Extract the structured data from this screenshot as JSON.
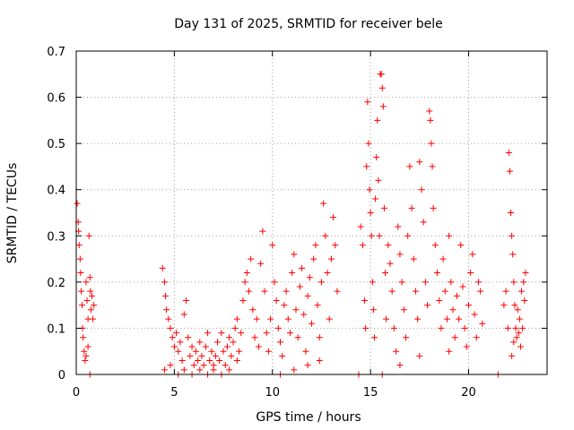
{
  "chart_data": {
    "type": "scatter",
    "title": "Day 131 of 2025, SRMTID for receiver bele",
    "xlabel": "GPS time / hours",
    "ylabel": "SRMTID / TECUs",
    "xlim": [
      0,
      24
    ],
    "ylim": [
      0,
      0.7
    ],
    "x_ticks": [
      "0",
      "5",
      "10",
      "15",
      "20"
    ],
    "y_ticks": [
      "0",
      "0.1",
      "0.2",
      "0.3",
      "0.4",
      "0.5",
      "0.6",
      "0.7"
    ],
    "grid": true,
    "marker": "+",
    "series": [
      {
        "name": "SRMTID",
        "color": "#ff0000",
        "points": [
          [
            0.05,
            0.37
          ],
          [
            0.1,
            0.33
          ],
          [
            0.12,
            0.31
          ],
          [
            0.15,
            0.28
          ],
          [
            0.2,
            0.25
          ],
          [
            0.22,
            0.22
          ],
          [
            0.25,
            0.18
          ],
          [
            0.3,
            0.15
          ],
          [
            0.32,
            0.1
          ],
          [
            0.35,
            0.08
          ],
          [
            0.4,
            0.05
          ],
          [
            0.45,
            0.03
          ],
          [
            0.5,
            0.2
          ],
          [
            0.55,
            0.16
          ],
          [
            0.6,
            0.12
          ],
          [
            0.65,
            0.3
          ],
          [
            0.7,
            0.21
          ],
          [
            0.72,
            0.18
          ],
          [
            0.75,
            0.14
          ],
          [
            0.8,
            0.17
          ],
          [
            0.85,
            0.12
          ],
          [
            0.9,
            0.15
          ],
          [
            0.7,
            0.0
          ],
          [
            0.6,
            0.06
          ],
          [
            0.5,
            0.04
          ],
          [
            4.4,
            0.23
          ],
          [
            4.5,
            0.2
          ],
          [
            4.55,
            0.17
          ],
          [
            4.6,
            0.14
          ],
          [
            4.7,
            0.12
          ],
          [
            4.8,
            0.1
          ],
          [
            4.9,
            0.08
          ],
          [
            5.0,
            0.06
          ],
          [
            5.1,
            0.09
          ],
          [
            5.2,
            0.05
          ],
          [
            5.3,
            0.07
          ],
          [
            5.4,
            0.03
          ],
          [
            5.5,
            0.13
          ],
          [
            5.6,
            0.16
          ],
          [
            5.7,
            0.08
          ],
          [
            5.8,
            0.04
          ],
          [
            5.9,
            0.06
          ],
          [
            6.0,
            0.02
          ],
          [
            6.1,
            0.05
          ],
          [
            6.2,
            0.03
          ],
          [
            6.3,
            0.07
          ],
          [
            6.4,
            0.04
          ],
          [
            6.5,
            0.02
          ],
          [
            6.6,
            0.06
          ],
          [
            6.7,
            0.09
          ],
          [
            6.8,
            0.03
          ],
          [
            6.9,
            0.05
          ],
          [
            7.0,
            0.01
          ],
          [
            7.1,
            0.04
          ],
          [
            7.2,
            0.07
          ],
          [
            7.3,
            0.03
          ],
          [
            7.4,
            0.09
          ],
          [
            7.5,
            0.05
          ],
          [
            7.6,
            0.02
          ],
          [
            7.7,
            0.06
          ],
          [
            7.8,
            0.08
          ],
          [
            7.9,
            0.04
          ],
          [
            8.0,
            0.07
          ],
          [
            8.1,
            0.1
          ],
          [
            8.2,
            0.12
          ],
          [
            8.3,
            0.05
          ],
          [
            8.4,
            0.09
          ],
          [
            4.5,
            0.01
          ],
          [
            4.8,
            0.02
          ],
          [
            5.2,
            0.0
          ],
          [
            5.5,
            0.01
          ],
          [
            5.9,
            0.0
          ],
          [
            6.3,
            0.01
          ],
          [
            6.7,
            0.0
          ],
          [
            7.0,
            0.02
          ],
          [
            7.4,
            0.0
          ],
          [
            7.8,
            0.01
          ],
          [
            8.2,
            0.03
          ],
          [
            8.5,
            0.16
          ],
          [
            8.6,
            0.2
          ],
          [
            8.7,
            0.22
          ],
          [
            8.8,
            0.18
          ],
          [
            8.9,
            0.25
          ],
          [
            9.0,
            0.14
          ],
          [
            9.1,
            0.08
          ],
          [
            9.2,
            0.12
          ],
          [
            9.3,
            0.06
          ],
          [
            9.4,
            0.24
          ],
          [
            9.5,
            0.31
          ],
          [
            9.6,
            0.18
          ],
          [
            9.7,
            0.09
          ],
          [
            9.8,
            0.05
          ],
          [
            9.9,
            0.12
          ],
          [
            10.0,
            0.28
          ],
          [
            10.1,
            0.2
          ],
          [
            10.2,
            0.16
          ],
          [
            10.3,
            0.1
          ],
          [
            10.4,
            0.07
          ],
          [
            10.5,
            0.04
          ],
          [
            10.6,
            0.15
          ],
          [
            10.7,
            0.18
          ],
          [
            10.8,
            0.12
          ],
          [
            10.9,
            0.09
          ],
          [
            11.0,
            0.22
          ],
          [
            11.1,
            0.26
          ],
          [
            11.2,
            0.14
          ],
          [
            11.3,
            0.08
          ],
          [
            11.4,
            0.19
          ],
          [
            11.5,
            0.23
          ],
          [
            11.6,
            0.13
          ],
          [
            11.7,
            0.05
          ],
          [
            11.8,
            0.17
          ],
          [
            11.9,
            0.21
          ],
          [
            12.0,
            0.11
          ],
          [
            12.1,
            0.25
          ],
          [
            12.2,
            0.28
          ],
          [
            12.3,
            0.15
          ],
          [
            12.4,
            0.08
          ],
          [
            12.5,
            0.2
          ],
          [
            12.6,
            0.37
          ],
          [
            12.7,
            0.3
          ],
          [
            12.8,
            0.22
          ],
          [
            12.9,
            0.12
          ],
          [
            13.0,
            0.25
          ],
          [
            13.1,
            0.34
          ],
          [
            13.2,
            0.28
          ],
          [
            13.3,
            0.18
          ],
          [
            10.4,
            0.0
          ],
          [
            11.1,
            0.01
          ],
          [
            11.8,
            0.02
          ],
          [
            12.4,
            0.03
          ],
          [
            14.4,
            0.0
          ],
          [
            14.5,
            0.32
          ],
          [
            14.6,
            0.28
          ],
          [
            14.7,
            0.16
          ],
          [
            14.75,
            0.1
          ],
          [
            14.8,
            0.45
          ],
          [
            14.85,
            0.59
          ],
          [
            14.9,
            0.5
          ],
          [
            14.95,
            0.4
          ],
          [
            15.0,
            0.35
          ],
          [
            15.05,
            0.3
          ],
          [
            15.1,
            0.2
          ],
          [
            15.15,
            0.14
          ],
          [
            15.2,
            0.08
          ],
          [
            15.25,
            0.38
          ],
          [
            15.3,
            0.47
          ],
          [
            15.35,
            0.55
          ],
          [
            15.4,
            0.42
          ],
          [
            15.45,
            0.3
          ],
          [
            15.5,
            0.65
          ],
          [
            15.55,
            0.65
          ],
          [
            15.6,
            0.62
          ],
          [
            15.65,
            0.58
          ],
          [
            15.7,
            0.36
          ],
          [
            15.75,
            0.22
          ],
          [
            15.8,
            0.12
          ],
          [
            15.9,
            0.28
          ],
          [
            16.0,
            0.24
          ],
          [
            16.1,
            0.18
          ],
          [
            16.2,
            0.1
          ],
          [
            16.3,
            0.05
          ],
          [
            16.4,
            0.32
          ],
          [
            16.5,
            0.26
          ],
          [
            16.6,
            0.2
          ],
          [
            16.7,
            0.14
          ],
          [
            16.8,
            0.08
          ],
          [
            16.9,
            0.3
          ],
          [
            17.0,
            0.45
          ],
          [
            17.1,
            0.36
          ],
          [
            17.2,
            0.25
          ],
          [
            17.3,
            0.18
          ],
          [
            17.4,
            0.12
          ],
          [
            17.5,
            0.46
          ],
          [
            17.6,
            0.4
          ],
          [
            17.7,
            0.33
          ],
          [
            17.8,
            0.2
          ],
          [
            17.9,
            0.15
          ],
          [
            18.0,
            0.57
          ],
          [
            18.05,
            0.55
          ],
          [
            18.1,
            0.5
          ],
          [
            18.15,
            0.45
          ],
          [
            18.2,
            0.36
          ],
          [
            18.3,
            0.28
          ],
          [
            18.4,
            0.22
          ],
          [
            18.5,
            0.16
          ],
          [
            18.6,
            0.1
          ],
          [
            18.7,
            0.25
          ],
          [
            18.8,
            0.18
          ],
          [
            18.9,
            0.12
          ],
          [
            19.0,
            0.3
          ],
          [
            19.1,
            0.2
          ],
          [
            19.2,
            0.14
          ],
          [
            19.3,
            0.08
          ],
          [
            19.4,
            0.17
          ],
          [
            19.5,
            0.12
          ],
          [
            19.6,
            0.28
          ],
          [
            19.7,
            0.19
          ],
          [
            19.8,
            0.1
          ],
          [
            19.9,
            0.06
          ],
          [
            20.0,
            0.15
          ],
          [
            20.1,
            0.22
          ],
          [
            20.2,
            0.26
          ],
          [
            20.3,
            0.13
          ],
          [
            20.4,
            0.08
          ],
          [
            20.5,
            0.2
          ],
          [
            20.6,
            0.18
          ],
          [
            20.7,
            0.11
          ],
          [
            15.6,
            0.0
          ],
          [
            16.5,
            0.02
          ],
          [
            17.5,
            0.04
          ],
          [
            19.0,
            0.05
          ],
          [
            21.5,
            0.0
          ],
          [
            21.8,
            0.15
          ],
          [
            21.9,
            0.18
          ],
          [
            22.0,
            0.1
          ],
          [
            22.05,
            0.48
          ],
          [
            22.1,
            0.44
          ],
          [
            22.15,
            0.35
          ],
          [
            22.2,
            0.3
          ],
          [
            22.25,
            0.26
          ],
          [
            22.3,
            0.2
          ],
          [
            22.35,
            0.15
          ],
          [
            22.4,
            0.1
          ],
          [
            22.45,
            0.08
          ],
          [
            22.5,
            0.14
          ],
          [
            22.6,
            0.12
          ],
          [
            22.7,
            0.18
          ],
          [
            22.8,
            0.2
          ],
          [
            22.9,
            0.22
          ],
          [
            22.85,
            0.16
          ],
          [
            22.75,
            0.1
          ],
          [
            22.65,
            0.06
          ],
          [
            22.55,
            0.09
          ],
          [
            22.2,
            0.04
          ],
          [
            22.3,
            0.07
          ]
        ]
      }
    ]
  }
}
